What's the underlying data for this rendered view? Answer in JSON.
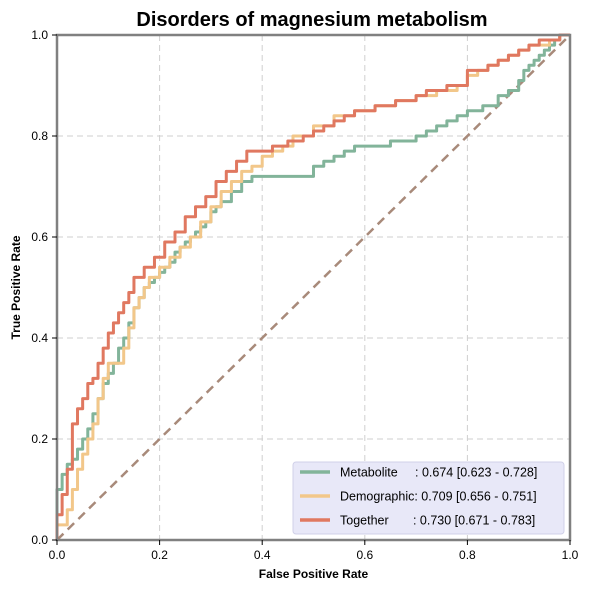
{
  "chart_data": {
    "type": "line",
    "title": "Disorders of magnesium metabolism",
    "xlabel": "False Positive Rate",
    "ylabel": "True Positive Rate",
    "xlim": [
      0,
      1
    ],
    "ylim": [
      0,
      1
    ],
    "xticks": [
      0,
      0.2,
      0.4,
      0.6,
      0.8,
      1.0
    ],
    "yticks": [
      0,
      0.2,
      0.4,
      0.6,
      0.8,
      1.0
    ],
    "xtick_labels": [
      "0.0",
      "0.2",
      "0.4",
      "0.6",
      "0.8",
      "1.0"
    ],
    "ytick_labels": [
      "0.0",
      "0.2",
      "0.4",
      "0.6",
      "0.8",
      "1.0"
    ],
    "grid": true,
    "legend_position": "lower-right",
    "diagonal": {
      "name": "chance",
      "color": "#a88a7a",
      "points": [
        [
          0,
          0
        ],
        [
          1,
          1
        ]
      ]
    },
    "series": [
      {
        "name": "Metabolite",
        "legend_label": "Metabolite     : 0.674 [0.623 - 0.728]",
        "color": "#82b49a",
        "points": [
          [
            0,
            0
          ],
          [
            0,
            0.08
          ],
          [
            0.01,
            0.1
          ],
          [
            0.02,
            0.13
          ],
          [
            0.03,
            0.15
          ],
          [
            0.04,
            0.16
          ],
          [
            0.05,
            0.18
          ],
          [
            0.06,
            0.2
          ],
          [
            0.07,
            0.22
          ],
          [
            0.08,
            0.25
          ],
          [
            0.09,
            0.28
          ],
          [
            0.1,
            0.31
          ],
          [
            0.11,
            0.33
          ],
          [
            0.12,
            0.35
          ],
          [
            0.13,
            0.38
          ],
          [
            0.14,
            0.4
          ],
          [
            0.15,
            0.43
          ],
          [
            0.16,
            0.46
          ],
          [
            0.17,
            0.48
          ],
          [
            0.18,
            0.5
          ],
          [
            0.19,
            0.51
          ],
          [
            0.2,
            0.52
          ],
          [
            0.21,
            0.53
          ],
          [
            0.22,
            0.54
          ],
          [
            0.23,
            0.55
          ],
          [
            0.24,
            0.57
          ],
          [
            0.25,
            0.58
          ],
          [
            0.26,
            0.59
          ],
          [
            0.27,
            0.6
          ],
          [
            0.28,
            0.61
          ],
          [
            0.29,
            0.62
          ],
          [
            0.3,
            0.63
          ],
          [
            0.31,
            0.65
          ],
          [
            0.32,
            0.66
          ],
          [
            0.34,
            0.67
          ],
          [
            0.36,
            0.69
          ],
          [
            0.38,
            0.71
          ],
          [
            0.4,
            0.72
          ],
          [
            0.5,
            0.72
          ],
          [
            0.52,
            0.74
          ],
          [
            0.54,
            0.75
          ],
          [
            0.56,
            0.76
          ],
          [
            0.58,
            0.77
          ],
          [
            0.6,
            0.78
          ],
          [
            0.65,
            0.78
          ],
          [
            0.68,
            0.79
          ],
          [
            0.7,
            0.79
          ],
          [
            0.72,
            0.8
          ],
          [
            0.74,
            0.81
          ],
          [
            0.76,
            0.82
          ],
          [
            0.78,
            0.83
          ],
          [
            0.8,
            0.84
          ],
          [
            0.83,
            0.85
          ],
          [
            0.86,
            0.86
          ],
          [
            0.88,
            0.88
          ],
          [
            0.9,
            0.89
          ],
          [
            0.91,
            0.91
          ],
          [
            0.92,
            0.93
          ],
          [
            0.93,
            0.94
          ],
          [
            0.94,
            0.95
          ],
          [
            0.95,
            0.96
          ],
          [
            0.96,
            0.97
          ],
          [
            0.97,
            0.98
          ],
          [
            0.98,
            0.99
          ],
          [
            1,
            1
          ]
        ]
      },
      {
        "name": "Demographic",
        "legend_label": "Demographic: 0.709 [0.656 - 0.751]",
        "color": "#f2c78a",
        "points": [
          [
            0,
            0
          ],
          [
            0,
            0.01
          ],
          [
            0.02,
            0.03
          ],
          [
            0.03,
            0.06
          ],
          [
            0.04,
            0.1
          ],
          [
            0.05,
            0.14
          ],
          [
            0.06,
            0.17
          ],
          [
            0.07,
            0.2
          ],
          [
            0.08,
            0.23
          ],
          [
            0.09,
            0.28
          ],
          [
            0.1,
            0.32
          ],
          [
            0.11,
            0.35
          ],
          [
            0.13,
            0.35
          ],
          [
            0.14,
            0.38
          ],
          [
            0.15,
            0.42
          ],
          [
            0.16,
            0.46
          ],
          [
            0.17,
            0.48
          ],
          [
            0.18,
            0.5
          ],
          [
            0.2,
            0.52
          ],
          [
            0.22,
            0.54
          ],
          [
            0.24,
            0.56
          ],
          [
            0.26,
            0.58
          ],
          [
            0.28,
            0.6
          ],
          [
            0.3,
            0.63
          ],
          [
            0.32,
            0.66
          ],
          [
            0.34,
            0.69
          ],
          [
            0.36,
            0.71
          ],
          [
            0.38,
            0.73
          ],
          [
            0.4,
            0.74
          ],
          [
            0.42,
            0.76
          ],
          [
            0.44,
            0.77
          ],
          [
            0.46,
            0.78
          ],
          [
            0.5,
            0.8
          ],
          [
            0.54,
            0.82
          ],
          [
            0.58,
            0.84
          ],
          [
            0.62,
            0.85
          ],
          [
            0.66,
            0.86
          ],
          [
            0.7,
            0.87
          ],
          [
            0.74,
            0.88
          ],
          [
            0.78,
            0.89
          ],
          [
            0.8,
            0.9
          ],
          [
            0.82,
            0.92
          ],
          [
            0.84,
            0.93
          ],
          [
            0.86,
            0.94
          ],
          [
            0.88,
            0.95
          ],
          [
            0.9,
            0.96
          ],
          [
            0.92,
            0.97
          ],
          [
            0.94,
            0.98
          ],
          [
            0.96,
            0.98
          ],
          [
            0.98,
            0.99
          ],
          [
            1,
            1
          ]
        ]
      },
      {
        "name": "Together",
        "legend_label": "Together       : 0.730 [0.671 - 0.783]",
        "color": "#e07860",
        "points": [
          [
            0,
            0
          ],
          [
            0,
            0.02
          ],
          [
            0.01,
            0.05
          ],
          [
            0.02,
            0.09
          ],
          [
            0.03,
            0.14
          ],
          [
            0.03,
            0.2
          ],
          [
            0.04,
            0.23
          ],
          [
            0.05,
            0.26
          ],
          [
            0.06,
            0.28
          ],
          [
            0.07,
            0.31
          ],
          [
            0.08,
            0.32
          ],
          [
            0.09,
            0.35
          ],
          [
            0.1,
            0.38
          ],
          [
            0.11,
            0.41
          ],
          [
            0.12,
            0.43
          ],
          [
            0.13,
            0.45
          ],
          [
            0.14,
            0.47
          ],
          [
            0.15,
            0.49
          ],
          [
            0.17,
            0.52
          ],
          [
            0.19,
            0.54
          ],
          [
            0.21,
            0.56
          ],
          [
            0.23,
            0.59
          ],
          [
            0.25,
            0.61
          ],
          [
            0.27,
            0.64
          ],
          [
            0.29,
            0.66
          ],
          [
            0.31,
            0.68
          ],
          [
            0.33,
            0.71
          ],
          [
            0.35,
            0.73
          ],
          [
            0.37,
            0.75
          ],
          [
            0.39,
            0.77
          ],
          [
            0.42,
            0.77
          ],
          [
            0.45,
            0.78
          ],
          [
            0.48,
            0.79
          ],
          [
            0.5,
            0.8
          ],
          [
            0.52,
            0.81
          ],
          [
            0.54,
            0.82
          ],
          [
            0.56,
            0.83
          ],
          [
            0.58,
            0.84
          ],
          [
            0.62,
            0.85
          ],
          [
            0.66,
            0.86
          ],
          [
            0.7,
            0.87
          ],
          [
            0.72,
            0.88
          ],
          [
            0.76,
            0.89
          ],
          [
            0.8,
            0.9
          ],
          [
            0.84,
            0.93
          ],
          [
            0.86,
            0.94
          ],
          [
            0.88,
            0.95
          ],
          [
            0.9,
            0.96
          ],
          [
            0.92,
            0.97
          ],
          [
            0.94,
            0.98
          ],
          [
            0.96,
            0.99
          ],
          [
            0.98,
            0.99
          ],
          [
            1,
            1
          ]
        ]
      }
    ]
  }
}
